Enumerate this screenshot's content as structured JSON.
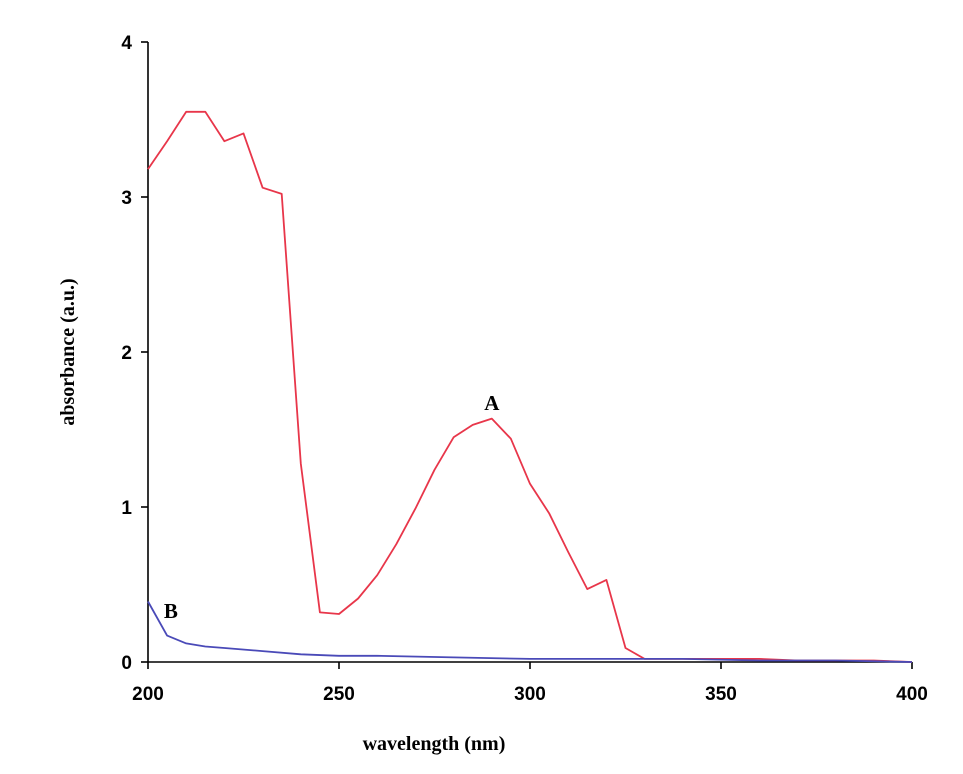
{
  "chart_data": {
    "type": "line",
    "title": "",
    "xlabel": "wavelength (nm)",
    "ylabel": "absorbance (a.u.)",
    "xlim": [
      200,
      400
    ],
    "ylim": [
      0,
      4
    ],
    "x_ticks": [
      200,
      250,
      300,
      350,
      400
    ],
    "y_ticks": [
      0,
      1,
      2,
      3,
      4
    ],
    "grid": false,
    "legend": "none",
    "series": [
      {
        "name": "A",
        "label_at": [
          290,
          1.67
        ],
        "color": "#e8364a",
        "x": [
          200,
          205,
          210,
          215,
          220,
          225,
          230,
          235,
          240,
          245,
          250,
          255,
          260,
          265,
          270,
          275,
          280,
          285,
          290,
          295,
          300,
          305,
          310,
          315,
          320,
          325,
          330,
          335,
          340,
          345,
          350,
          360,
          370,
          380,
          390,
          400
        ],
        "y": [
          3.18,
          3.36,
          3.55,
          3.55,
          3.36,
          3.41,
          3.06,
          3.02,
          1.28,
          0.32,
          0.31,
          0.41,
          0.56,
          0.76,
          0.99,
          1.24,
          1.45,
          1.53,
          1.57,
          1.44,
          1.15,
          0.96,
          0.71,
          0.47,
          0.53,
          0.09,
          0.02,
          0.02,
          0.02,
          0.02,
          0.02,
          0.02,
          0.01,
          0.01,
          0.01,
          0.0
        ]
      },
      {
        "name": "B",
        "label_at": [
          206,
          0.33
        ],
        "color": "#4a4ab8",
        "x": [
          200,
          205,
          210,
          215,
          220,
          230,
          240,
          250,
          260,
          280,
          300,
          320,
          340,
          360,
          380,
          400
        ],
        "y": [
          0.39,
          0.17,
          0.12,
          0.1,
          0.09,
          0.07,
          0.05,
          0.04,
          0.04,
          0.03,
          0.02,
          0.02,
          0.02,
          0.01,
          0.01,
          0.0
        ]
      }
    ]
  }
}
